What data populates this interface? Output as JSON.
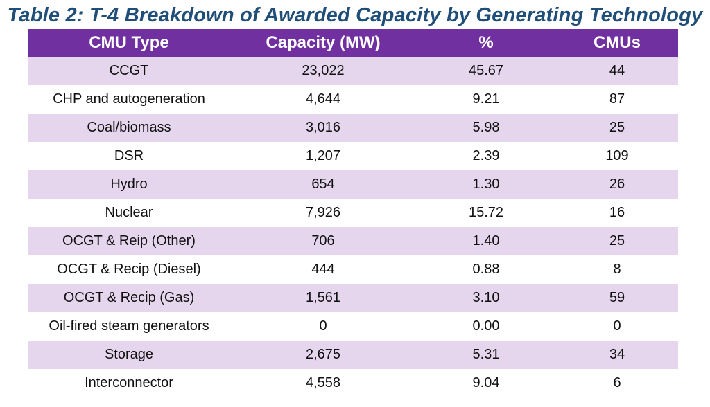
{
  "title": "Table 2: T-4 Breakdown of Awarded Capacity by Generating Technology",
  "colors": {
    "title": "#1f4e79",
    "header_bg": "#7030a0",
    "row_shade": "#e5d6ee"
  },
  "table": {
    "headers": [
      "CMU Type",
      "Capacity (MW)",
      "%",
      "CMUs"
    ],
    "rows": [
      {
        "type": "CCGT",
        "capacity": "23,022",
        "percent": "45.67",
        "cmus": "44"
      },
      {
        "type": "CHP and autogeneration",
        "capacity": "4,644",
        "percent": "9.21",
        "cmus": "87"
      },
      {
        "type": "Coal/biomass",
        "capacity": "3,016",
        "percent": "5.98",
        "cmus": "25"
      },
      {
        "type": "DSR",
        "capacity": "1,207",
        "percent": "2.39",
        "cmus": "109"
      },
      {
        "type": "Hydro",
        "capacity": "654",
        "percent": "1.30",
        "cmus": "26"
      },
      {
        "type": "Nuclear",
        "capacity": "7,926",
        "percent": "15.72",
        "cmus": "16"
      },
      {
        "type": "OCGT & Reip (Other)",
        "capacity": "706",
        "percent": "1.40",
        "cmus": "25"
      },
      {
        "type": "OCGT & Recip (Diesel)",
        "capacity": "444",
        "percent": "0.88",
        "cmus": "8"
      },
      {
        "type": "OCGT & Recip (Gas)",
        "capacity": "1,561",
        "percent": "3.10",
        "cmus": "59"
      },
      {
        "type": "Oil-fired steam generators",
        "capacity": "0",
        "percent": "0.00",
        "cmus": "0"
      },
      {
        "type": "Storage",
        "capacity": "2,675",
        "percent": "5.31",
        "cmus": "34"
      },
      {
        "type": "Interconnector",
        "capacity": "4,558",
        "percent": "9.04",
        "cmus": "6"
      }
    ]
  }
}
